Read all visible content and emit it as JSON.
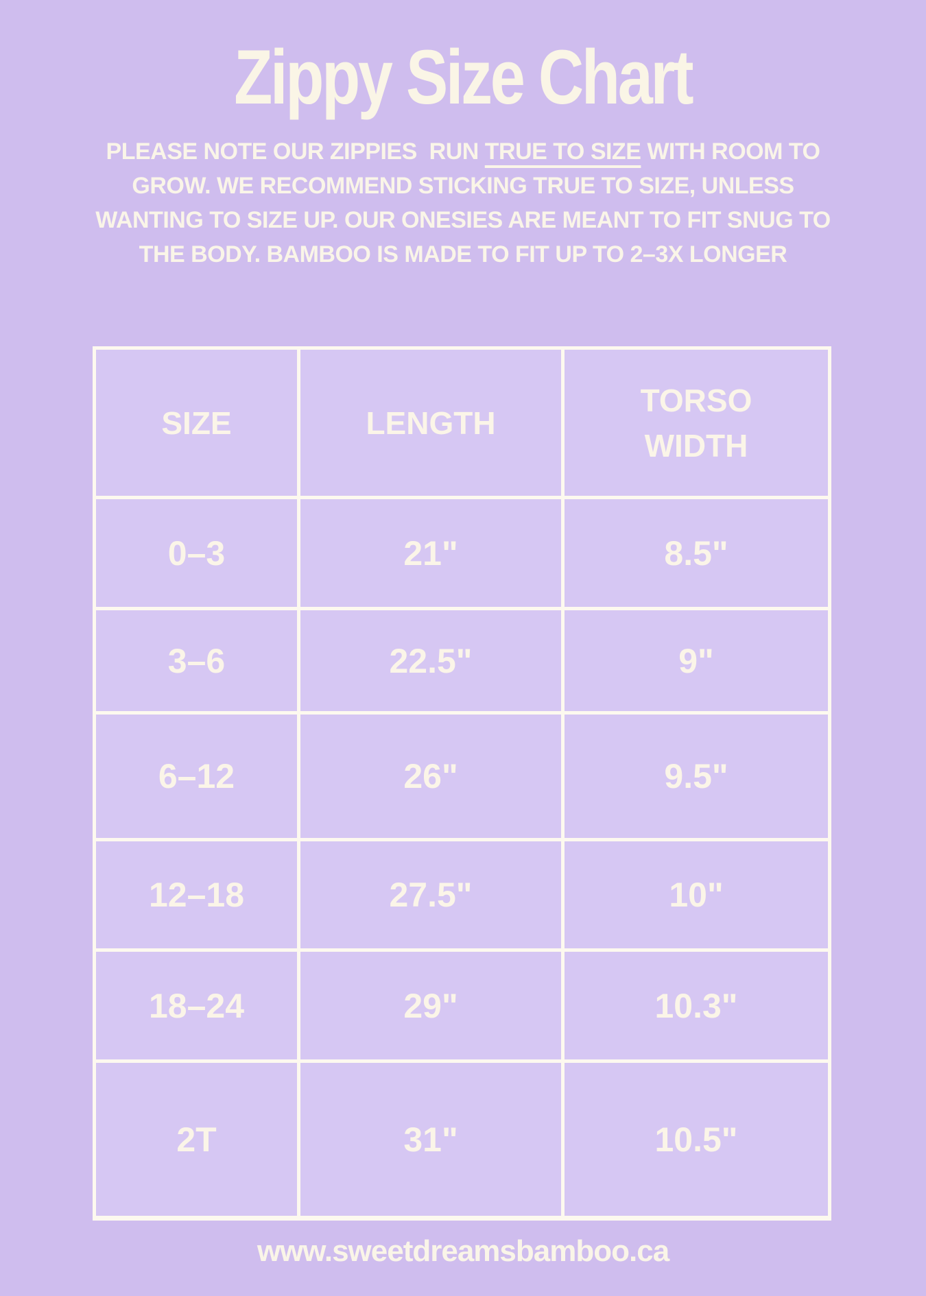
{
  "page": {
    "colors": {
      "background": "#cfbdee",
      "cell_background": "#d6c7f3",
      "line_cream": "#fdf9ef",
      "text_cream": "#faf5e8"
    }
  },
  "title": "Zippy Size Chart",
  "note": {
    "line1_pre": "PLEASE NOTE OUR ZIPPIES  RUN ",
    "line1_underline": "TRUE TO SIZE",
    "line1_post": " WITH ROOM TO",
    "line2": "GROW. WE RECOMMEND STICKING TRUE TO SIZE, UNLESS",
    "line3": "WANTING TO SIZE UP. OUR ONESIES ARE MEANT TO FIT SNUG TO",
    "line4": "THE BODY. BAMBOO IS MADE TO FIT UP TO 2–3X LONGER"
  },
  "chart_data": {
    "type": "table",
    "title": "Zippy Size Chart",
    "columns": [
      "SIZE",
      "LENGTH",
      "TORSO WIDTH"
    ],
    "rows": [
      [
        "0–3",
        "21\"",
        "8.5\""
      ],
      [
        "3–6",
        "22.5\"",
        "9\""
      ],
      [
        "6–12",
        "26\"",
        "9.5\""
      ],
      [
        "12–18",
        "27.5\"",
        "10\""
      ],
      [
        "18–24",
        "29\"",
        "10.3\""
      ],
      [
        "2T",
        "31\"",
        "10.5\""
      ]
    ]
  },
  "footer": {
    "url": "www.sweetdreamsbamboo.ca"
  }
}
